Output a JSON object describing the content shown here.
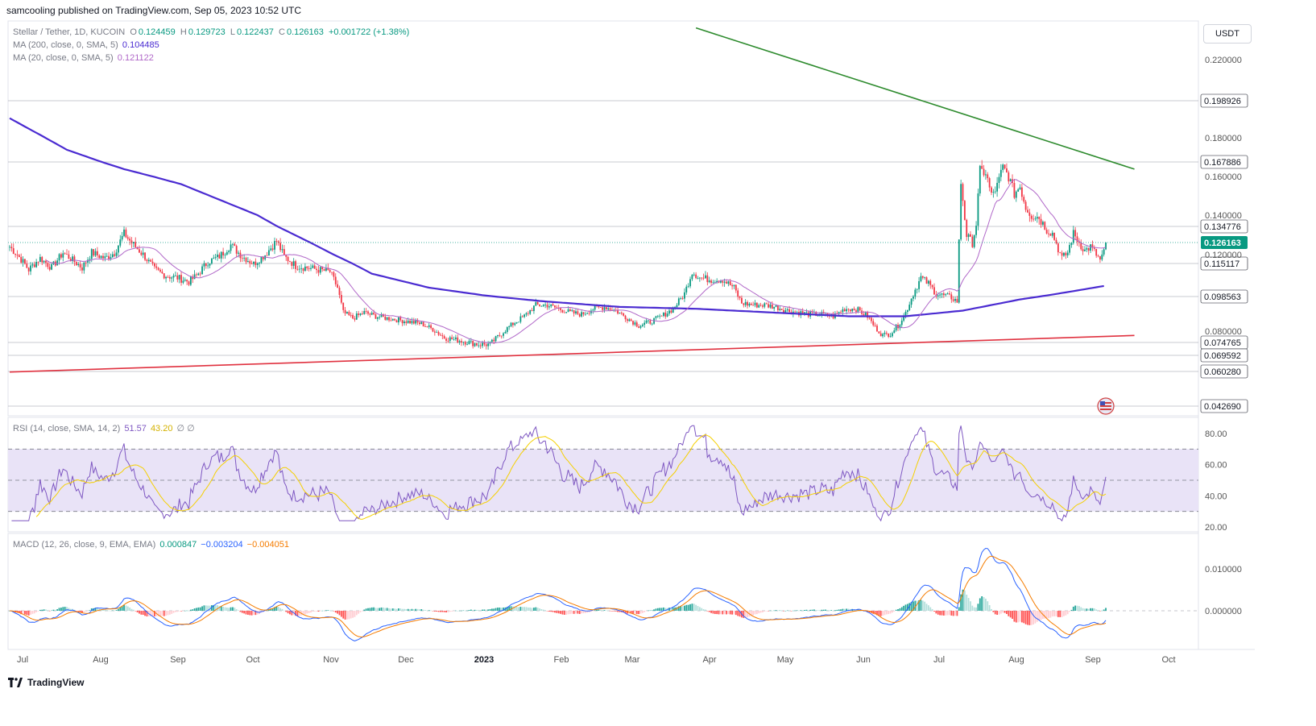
{
  "header": {
    "published": "samcooling published on TradingView.com, Sep 05, 2023 10:52 UTC"
  },
  "legend": {
    "symbol": "Stellar / Tether, 1D, KUCOIN",
    "o_label": "O",
    "o_value": "0.124459",
    "h_label": "H",
    "h_value": "0.129723",
    "l_label": "L",
    "l_value": "0.122437",
    "c_label": "C",
    "c_value": "0.126163",
    "change": "+0.001722 (+1.38%)",
    "ma200_label": "MA (200, close, 0, SMA, 5)",
    "ma200_value": "0.104485",
    "ma20_label": "MA (20, close, 0, SMA, 5)",
    "ma20_value": "0.121122",
    "rsi_label": "RSI (14, close, SMA, 14, 2)",
    "rsi_value": "51.57",
    "rsi_ma_value": "43.20",
    "rsi_extra": "∅ ∅",
    "macd_label": "MACD (12, 26, close, 9, EMA, EMA)",
    "macd_hist": "0.000847",
    "macd_line": "−0.003204",
    "macd_signal": "−0.004051"
  },
  "currency": "USDT",
  "footer": {
    "brand": "TradingView"
  },
  "colors": {
    "up": "#089981",
    "down": "#f23645",
    "ma200": "#4a2bd1",
    "ma20": "#b067c8",
    "resistance": "#2e8b2e",
    "support": "#e0313f",
    "rsi": "#7e57c2",
    "rsi_ma": "#f5d000",
    "macd": "#2962ff",
    "signal": "#f57c00",
    "rsi_band": "#e9e3f7"
  },
  "chart_data": {
    "type": "candlestick",
    "title": "Stellar / Tether, 1D, KUCOIN",
    "price_axis": {
      "ticks": [
        "0.220000",
        "0.180000",
        "0.160000",
        "0.140000",
        "0.120000",
        "0.080000"
      ],
      "tick_values": [
        0.22,
        0.18,
        0.16,
        0.14,
        0.12,
        0.08
      ],
      "level_labels": [
        "0.198926",
        "0.167886",
        "0.134776",
        "0.115117",
        "0.098563",
        "0.074765",
        "0.069592",
        "0.060280",
        "0.042690"
      ],
      "level_values": [
        0.198926,
        0.167886,
        0.134776,
        0.115117,
        0.098563,
        0.074765,
        0.069592,
        0.06028,
        0.04269
      ],
      "current_price_label": "0.126163",
      "current_price": 0.126163
    },
    "time_axis": {
      "labels": [
        "Jul",
        "Aug",
        "Sep",
        "Oct",
        "Nov",
        "Dec",
        "2023",
        "Feb",
        "Mar",
        "Apr",
        "May",
        "Jun",
        "Jul",
        "Aug",
        "Sep",
        "Oct"
      ]
    },
    "price_path": [
      [
        0,
        0.124
      ],
      [
        4,
        0.12
      ],
      [
        10,
        0.112
      ],
      [
        16,
        0.118
      ],
      [
        22,
        0.113
      ],
      [
        28,
        0.121
      ],
      [
        33,
        0.117
      ],
      [
        38,
        0.113
      ],
      [
        43,
        0.121
      ],
      [
        50,
        0.118
      ],
      [
        55,
        0.121
      ],
      [
        60,
        0.131
      ],
      [
        64,
        0.126
      ],
      [
        70,
        0.12
      ],
      [
        76,
        0.112
      ],
      [
        82,
        0.109
      ],
      [
        88,
        0.108
      ],
      [
        94,
        0.106
      ],
      [
        98,
        0.109
      ],
      [
        104,
        0.116
      ],
      [
        110,
        0.119
      ],
      [
        116,
        0.125
      ],
      [
        122,
        0.119
      ],
      [
        128,
        0.115
      ],
      [
        134,
        0.12
      ],
      [
        140,
        0.127
      ],
      [
        144,
        0.119
      ],
      [
        150,
        0.114
      ],
      [
        156,
        0.113
      ],
      [
        162,
        0.112
      ],
      [
        168,
        0.111
      ],
      [
        172,
        0.103
      ],
      [
        175,
        0.09
      ],
      [
        180,
        0.087
      ],
      [
        186,
        0.09
      ],
      [
        192,
        0.088
      ],
      [
        198,
        0.087
      ],
      [
        204,
        0.086
      ],
      [
        210,
        0.085
      ],
      [
        216,
        0.084
      ],
      [
        222,
        0.081
      ],
      [
        228,
        0.077
      ],
      [
        234,
        0.076
      ],
      [
        240,
        0.075
      ],
      [
        246,
        0.074
      ],
      [
        252,
        0.074
      ],
      [
        258,
        0.079
      ],
      [
        264,
        0.084
      ],
      [
        270,
        0.088
      ],
      [
        276,
        0.094
      ],
      [
        282,
        0.094
      ],
      [
        288,
        0.092
      ],
      [
        294,
        0.09
      ],
      [
        300,
        0.089
      ],
      [
        306,
        0.092
      ],
      [
        312,
        0.093
      ],
      [
        318,
        0.091
      ],
      [
        324,
        0.087
      ],
      [
        330,
        0.083
      ],
      [
        336,
        0.085
      ],
      [
        342,
        0.088
      ],
      [
        348,
        0.092
      ],
      [
        354,
        0.1
      ],
      [
        358,
        0.111
      ],
      [
        362,
        0.108
      ],
      [
        368,
        0.107
      ],
      [
        374,
        0.107
      ],
      [
        380,
        0.103
      ],
      [
        384,
        0.095
      ],
      [
        390,
        0.094
      ],
      [
        396,
        0.094
      ],
      [
        402,
        0.093
      ],
      [
        408,
        0.091
      ],
      [
        414,
        0.09
      ],
      [
        420,
        0.089
      ],
      [
        426,
        0.089
      ],
      [
        432,
        0.088
      ],
      [
        438,
        0.092
      ],
      [
        444,
        0.092
      ],
      [
        450,
        0.088
      ],
      [
        454,
        0.082
      ],
      [
        458,
        0.078
      ],
      [
        462,
        0.079
      ],
      [
        466,
        0.083
      ],
      [
        470,
        0.09
      ],
      [
        474,
        0.1
      ],
      [
        478,
        0.108
      ],
      [
        482,
        0.105
      ],
      [
        486,
        0.1
      ],
      [
        490,
        0.099
      ],
      [
        494,
        0.098
      ],
      [
        497,
        0.096
      ],
      [
        499,
        0.157
      ],
      [
        502,
        0.13
      ],
      [
        505,
        0.126
      ],
      [
        507,
        0.136
      ],
      [
        509,
        0.163
      ],
      [
        512,
        0.162
      ],
      [
        515,
        0.15
      ],
      [
        518,
        0.155
      ],
      [
        521,
        0.165
      ],
      [
        524,
        0.16
      ],
      [
        527,
        0.151
      ],
      [
        530,
        0.155
      ],
      [
        533,
        0.144
      ],
      [
        536,
        0.14
      ],
      [
        540,
        0.139
      ],
      [
        544,
        0.133
      ],
      [
        547,
        0.131
      ],
      [
        550,
        0.123
      ],
      [
        552,
        0.118
      ],
      [
        555,
        0.121
      ],
      [
        558,
        0.131
      ],
      [
        561,
        0.126
      ],
      [
        564,
        0.122
      ],
      [
        567,
        0.124
      ],
      [
        570,
        0.12
      ],
      [
        572,
        0.117
      ],
      [
        574,
        0.121
      ],
      [
        575,
        0.126
      ]
    ],
    "ma200_path": [
      [
        0,
        0.19
      ],
      [
        30,
        0.174
      ],
      [
        60,
        0.164
      ],
      [
        90,
        0.156
      ],
      [
        110,
        0.148
      ],
      [
        130,
        0.14
      ],
      [
        150,
        0.13
      ],
      [
        170,
        0.12
      ],
      [
        190,
        0.11
      ],
      [
        220,
        0.103
      ],
      [
        250,
        0.099
      ],
      [
        280,
        0.096
      ],
      [
        320,
        0.093
      ],
      [
        360,
        0.092
      ],
      [
        400,
        0.09
      ],
      [
        440,
        0.088
      ],
      [
        470,
        0.088
      ],
      [
        500,
        0.091
      ],
      [
        530,
        0.097
      ],
      [
        550,
        0.1
      ],
      [
        575,
        0.104
      ]
    ],
    "resistance_line": [
      [
        360,
        0.24
      ],
      [
        590,
        0.164
      ]
    ],
    "support_line": [
      [
        0,
        0.06
      ],
      [
        590,
        0.078
      ]
    ],
    "rsi": {
      "name": "RSI",
      "ticks": [
        "80.00",
        "60.00",
        "40.00",
        "20.00"
      ],
      "tick_values": [
        80,
        60,
        40,
        20
      ],
      "band": [
        30,
        70
      ],
      "midline": 50
    },
    "macd": {
      "name": "MACD",
      "ticks": [
        "0.010000",
        "0.000000"
      ],
      "tick_values": [
        0.01,
        0.0
      ]
    }
  }
}
